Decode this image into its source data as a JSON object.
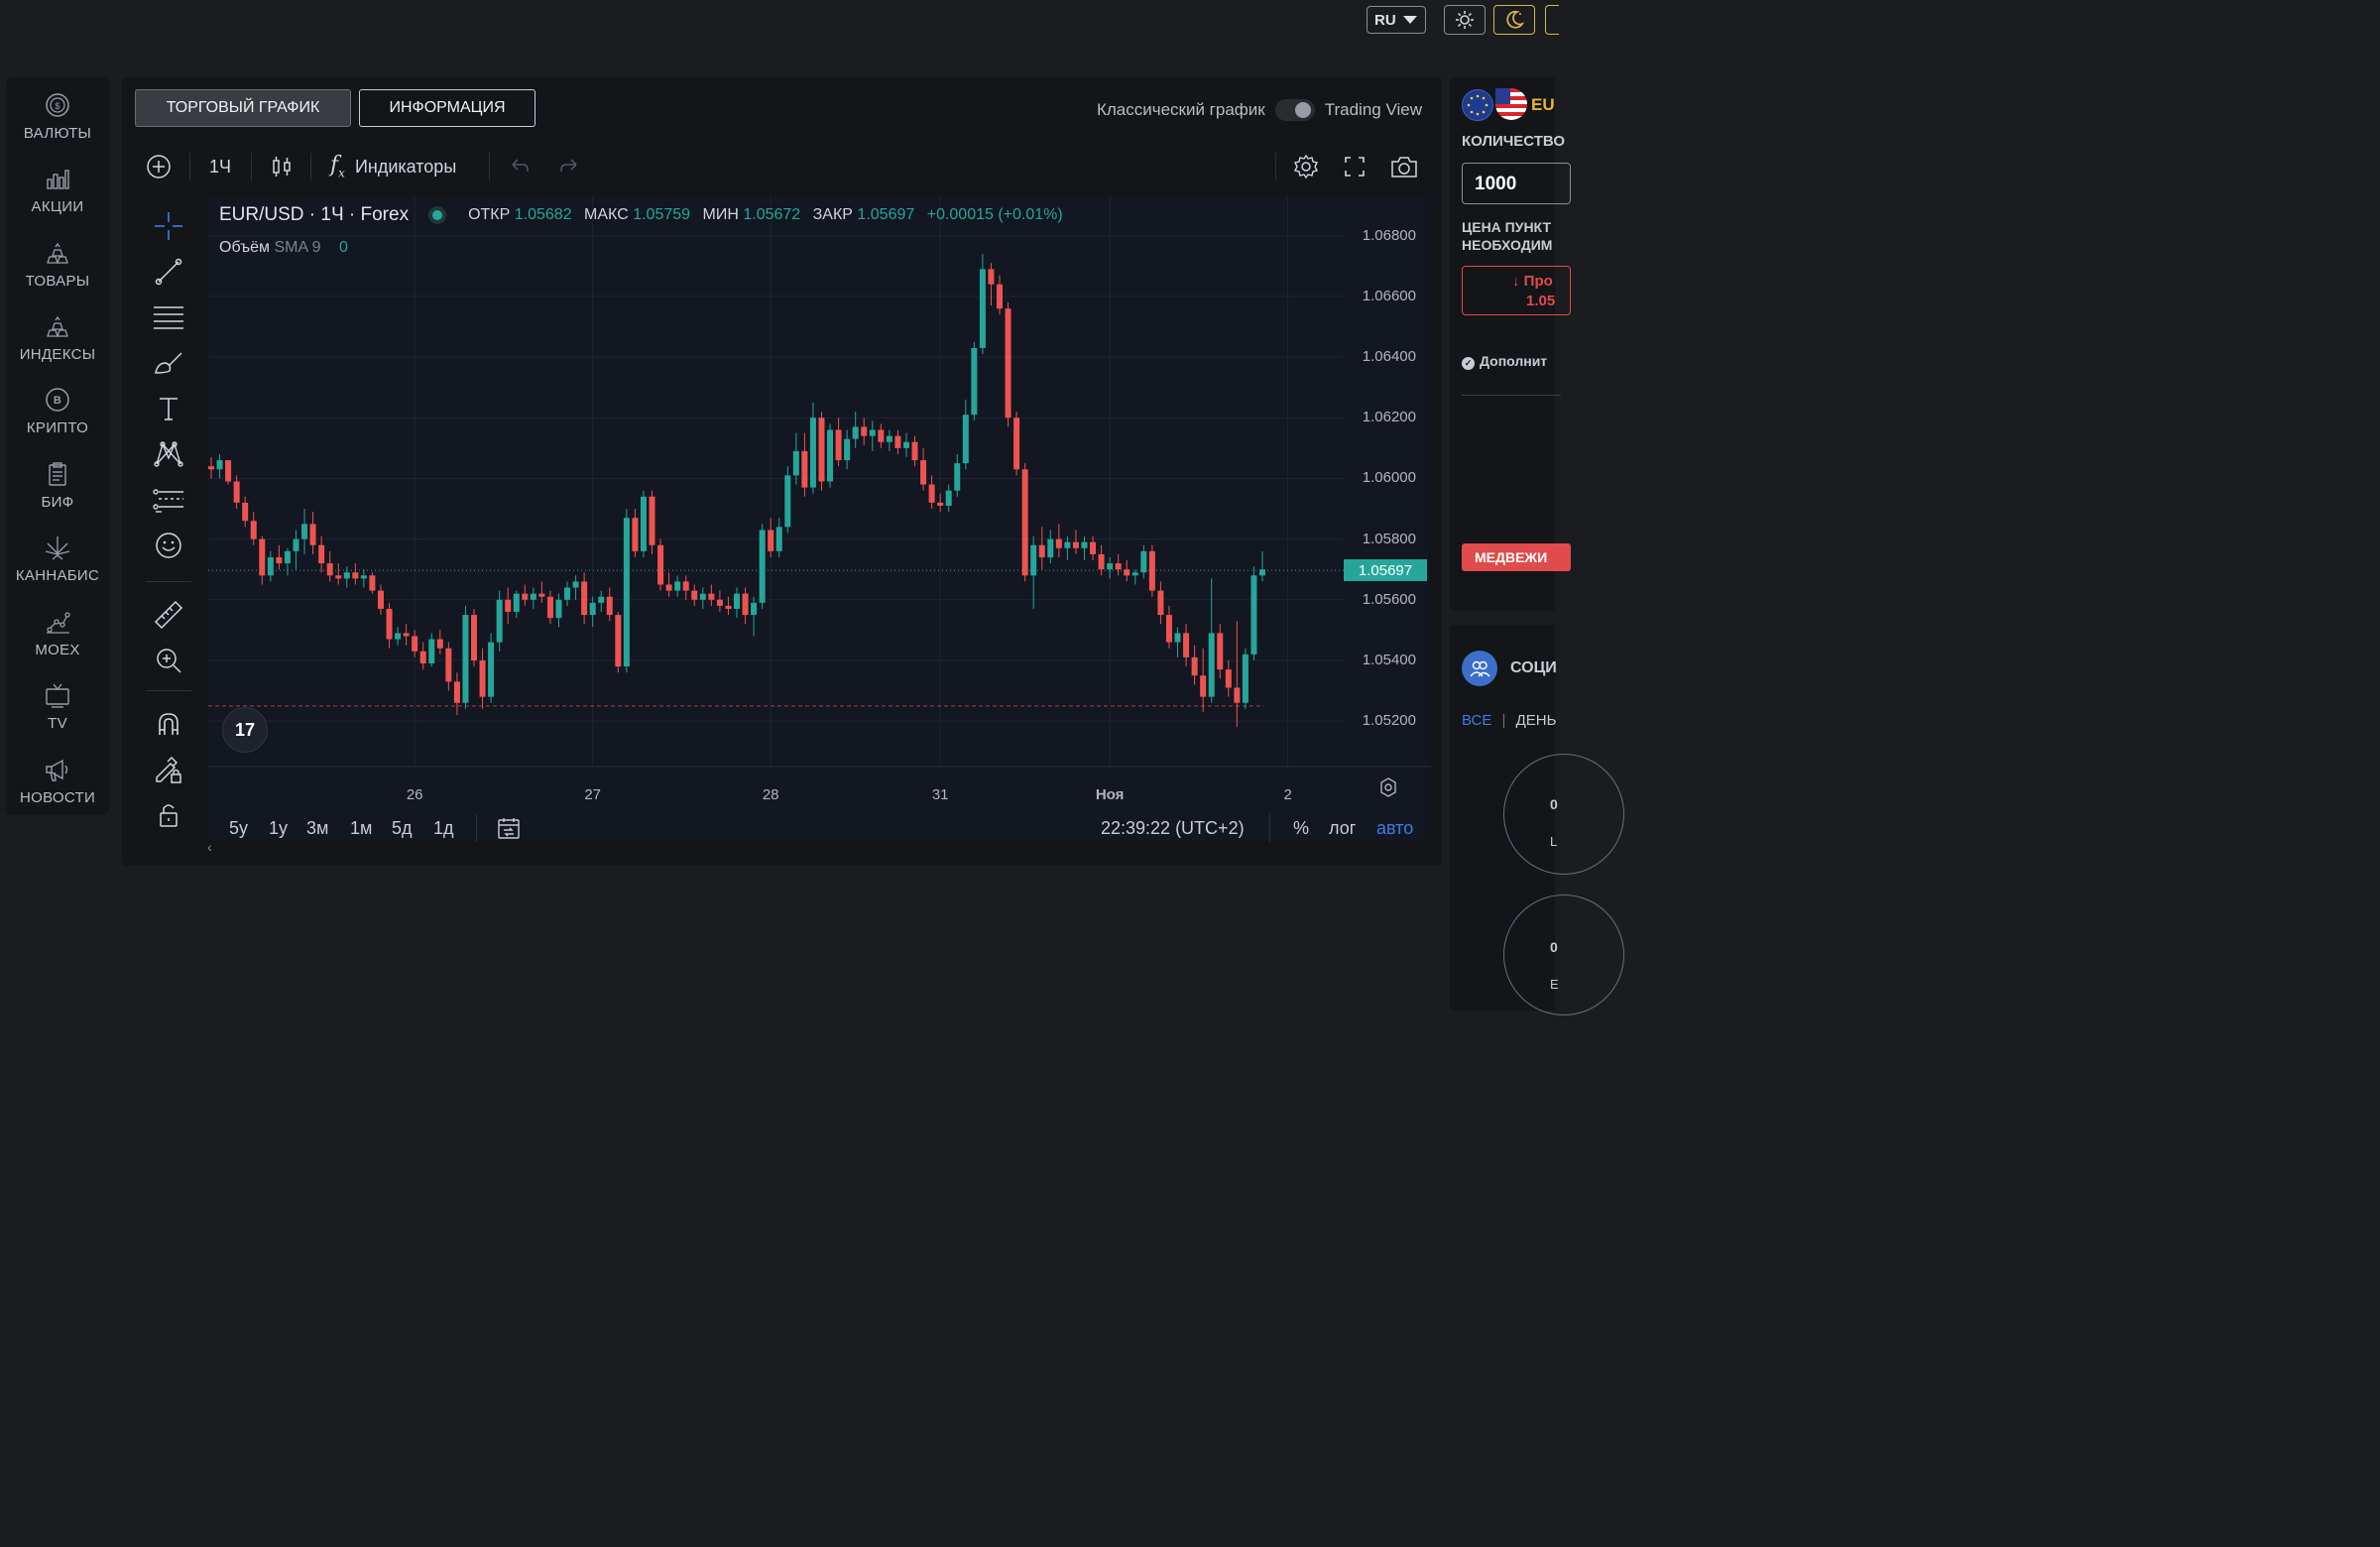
{
  "topbar": {
    "lang": "RU",
    "theme_light_icon": "sun-icon",
    "theme_dark_icon": "moon-icon"
  },
  "nav": [
    {
      "label": "ВАЛЮТЫ",
      "icon": "coin-icon"
    },
    {
      "label": "АКЦИИ",
      "icon": "bar-chart-icon"
    },
    {
      "label": "ТОВАРЫ",
      "icon": "gold-bars-icon"
    },
    {
      "label": "ИНДЕКСЫ",
      "icon": "gold-bars-icon"
    },
    {
      "label": "КРИПТО",
      "icon": "bitcoin-icon"
    },
    {
      "label": "БИФ",
      "icon": "clipboard-icon"
    },
    {
      "label": "КАННАБИС",
      "icon": "cannabis-leaf-icon"
    },
    {
      "label": "MOEX",
      "icon": "scatter-icon"
    },
    {
      "label": "TV",
      "icon": "tv-icon"
    },
    {
      "label": "НОВОСТИ",
      "icon": "megaphone-icon"
    }
  ],
  "tabs": {
    "trading_chart": "ТОРГОВЫЙ ГРАФИК",
    "info": "ИНФОРМАЦИЯ"
  },
  "view_toggle": {
    "classic": "Классический график",
    "tradingview": "Trading View"
  },
  "toolbar": {
    "interval": "1Ч",
    "indicators": "Индикаторы"
  },
  "chart_header": {
    "symbol": "EUR/USD · 1Ч · Forex",
    "open_label": "ОТКР",
    "open": "1.05682",
    "high_label": "МАКС",
    "high": "1.05759",
    "low_label": "МИН",
    "low": "1.05672",
    "close_label": "ЗАКР",
    "close": "1.05697",
    "change": "+0.00015 (+0.01%)",
    "volume_label": "Объём",
    "volume_sma": "SMA 9",
    "volume_value": "0"
  },
  "bottom": {
    "ranges": [
      "5y",
      "1y",
      "3м",
      "1м",
      "5д",
      "1д"
    ],
    "time": "22:39:22 (UTC+2)",
    "percent": "%",
    "log": "лог",
    "auto": "авто"
  },
  "right": {
    "pair": "EU",
    "qty_label": "КОЛИЧЕСТВО",
    "qty_value": "1000",
    "price_label_1": "ЦЕНА ПУНКТ",
    "price_label_2": "НЕОБХОДИМ",
    "sell_label": "Про",
    "sell_price": "1.05",
    "more": "Дополнит",
    "bear": "МЕДВЕЖИ",
    "social": "СОЦИ",
    "filter_all": "ВСЕ",
    "filter_day": "ДЕНЬ",
    "gauge1": "0",
    "gauge1_sub": "L",
    "gauge2": "0",
    "gauge2_sub": "E"
  },
  "colors": {
    "up": "#26a69a",
    "down": "#ef5350",
    "accent_blue": "#3d7ce6",
    "bear_red": "#e04b4b"
  },
  "chart_data": {
    "type": "candlestick",
    "title": "EUR/USD · 1Ч · Forex",
    "y_ticks": [
      1.068,
      1.066,
      1.064,
      1.062,
      1.06,
      1.058,
      1.056,
      1.054,
      1.052
    ],
    "y_tick_labels": [
      "1.06800",
      "1.06600",
      "1.06400",
      "1.06200",
      "1.06000",
      "1.05800",
      "1.05600",
      "1.05400",
      "1.05200"
    ],
    "ylim": [
      1.0505,
      1.0693
    ],
    "x_labels": [
      "26",
      "27",
      "28",
      "31",
      "Ноя",
      "2"
    ],
    "last_price": 1.05697,
    "last_price_label": "1.05697",
    "low_line": 1.0525,
    "candles": [
      [
        1.0604,
        1.0607,
        1.06,
        1.0603
      ],
      [
        1.0603,
        1.0608,
        1.06,
        1.0606
      ],
      [
        1.0606,
        1.0606,
        1.0598,
        1.0599
      ],
      [
        1.0599,
        1.0601,
        1.059,
        1.0592
      ],
      [
        1.0592,
        1.0594,
        1.0584,
        1.0586
      ],
      [
        1.0586,
        1.0589,
        1.0578,
        1.058
      ],
      [
        1.058,
        1.0581,
        1.0565,
        1.0568
      ],
      [
        1.0568,
        1.0576,
        1.0566,
        1.0574
      ],
      [
        1.0574,
        1.0578,
        1.057,
        1.0572
      ],
      [
        1.0572,
        1.0577,
        1.0568,
        1.0576
      ],
      [
        1.0576,
        1.0583,
        1.057,
        1.058
      ],
      [
        1.058,
        1.059,
        1.0575,
        1.0585
      ],
      [
        1.0585,
        1.0589,
        1.0575,
        1.0578
      ],
      [
        1.0578,
        1.0581,
        1.0569,
        1.0572
      ],
      [
        1.0572,
        1.0576,
        1.0566,
        1.0568
      ],
      [
        1.0568,
        1.0572,
        1.0565,
        1.0567
      ],
      [
        1.0567,
        1.0571,
        1.0564,
        1.0569
      ],
      [
        1.0569,
        1.0572,
        1.0565,
        1.0567
      ],
      [
        1.0567,
        1.057,
        1.0564,
        1.0568
      ],
      [
        1.0568,
        1.0569,
        1.0562,
        1.0563
      ],
      [
        1.0563,
        1.0565,
        1.0555,
        1.0557
      ],
      [
        1.0557,
        1.0559,
        1.0544,
        1.0547
      ],
      [
        1.0547,
        1.0551,
        1.0545,
        1.0549
      ],
      [
        1.0549,
        1.0552,
        1.0545,
        1.0548
      ],
      [
        1.0548,
        1.055,
        1.0541,
        1.0543
      ],
      [
        1.0543,
        1.0546,
        1.0537,
        1.0539
      ],
      [
        1.0539,
        1.0549,
        1.0538,
        1.0547
      ],
      [
        1.0547,
        1.055,
        1.0542,
        1.0544
      ],
      [
        1.0544,
        1.0546,
        1.053,
        1.0533
      ],
      [
        1.0533,
        1.0536,
        1.0522,
        1.0526
      ],
      [
        1.0526,
        1.0558,
        1.0524,
        1.0555
      ],
      [
        1.0555,
        1.0557,
        1.0538,
        1.054
      ],
      [
        1.054,
        1.0544,
        1.0524,
        1.0528
      ],
      [
        1.0528,
        1.0549,
        1.0526,
        1.0546
      ],
      [
        1.0546,
        1.0563,
        1.0543,
        1.056
      ],
      [
        1.056,
        1.0564,
        1.0552,
        1.0556
      ],
      [
        1.0556,
        1.0563,
        1.0554,
        1.0562
      ],
      [
        1.0562,
        1.0565,
        1.0558,
        1.056
      ],
      [
        1.056,
        1.0564,
        1.0557,
        1.0562
      ],
      [
        1.0562,
        1.0566,
        1.0559,
        1.0561
      ],
      [
        1.0561,
        1.0563,
        1.0552,
        1.0554
      ],
      [
        1.0554,
        1.0562,
        1.0551,
        1.056
      ],
      [
        1.056,
        1.0566,
        1.0558,
        1.0564
      ],
      [
        1.0564,
        1.0568,
        1.056,
        1.0566
      ],
      [
        1.0566,
        1.0569,
        1.0552,
        1.0555
      ],
      [
        1.0555,
        1.0561,
        1.0551,
        1.0559
      ],
      [
        1.0559,
        1.0563,
        1.0556,
        1.0561
      ],
      [
        1.0561,
        1.0564,
        1.0553,
        1.0555
      ],
      [
        1.0555,
        1.0556,
        1.0536,
        1.0538
      ],
      [
        1.0538,
        1.059,
        1.0536,
        1.0587
      ],
      [
        1.0587,
        1.059,
        1.0574,
        1.0576
      ],
      [
        1.0576,
        1.0596,
        1.0574,
        1.0594
      ],
      [
        1.0594,
        1.0596,
        1.0575,
        1.0578
      ],
      [
        1.0578,
        1.058,
        1.0563,
        1.0565
      ],
      [
        1.0565,
        1.0569,
        1.0561,
        1.0563
      ],
      [
        1.0563,
        1.0568,
        1.0561,
        1.0566
      ],
      [
        1.0566,
        1.0568,
        1.056,
        1.0563
      ],
      [
        1.0563,
        1.0565,
        1.0558,
        1.056
      ],
      [
        1.056,
        1.0564,
        1.0557,
        1.0562
      ],
      [
        1.0562,
        1.0565,
        1.0558,
        1.056
      ],
      [
        1.056,
        1.0563,
        1.0556,
        1.0558
      ],
      [
        1.0558,
        1.0561,
        1.0555,
        1.0557
      ],
      [
        1.0557,
        1.0564,
        1.0554,
        1.0562
      ],
      [
        1.0562,
        1.0564,
        1.0552,
        1.0555
      ],
      [
        1.0555,
        1.0561,
        1.0548,
        1.0559
      ],
      [
        1.0559,
        1.0585,
        1.0557,
        1.0583
      ],
      [
        1.0583,
        1.0587,
        1.0574,
        1.0576
      ],
      [
        1.0576,
        1.0587,
        1.0574,
        1.0584
      ],
      [
        1.0584,
        1.0604,
        1.0582,
        1.0601
      ],
      [
        1.0601,
        1.0615,
        1.0598,
        1.0609
      ],
      [
        1.0609,
        1.0615,
        1.0594,
        1.0597
      ],
      [
        1.0597,
        1.0625,
        1.0595,
        1.062
      ],
      [
        1.062,
        1.0622,
        1.0596,
        1.0599
      ],
      [
        1.0599,
        1.0618,
        1.0597,
        1.0616
      ],
      [
        1.0616,
        1.062,
        1.0604,
        1.0606
      ],
      [
        1.0606,
        1.0616,
        1.0603,
        1.0613
      ],
      [
        1.0613,
        1.0622,
        1.061,
        1.0617
      ],
      [
        1.0617,
        1.062,
        1.0611,
        1.0614
      ],
      [
        1.0614,
        1.0619,
        1.0609,
        1.0616
      ],
      [
        1.0616,
        1.0618,
        1.061,
        1.0612
      ],
      [
        1.0612,
        1.0616,
        1.0609,
        1.0614
      ],
      [
        1.0614,
        1.0616,
        1.0608,
        1.061
      ],
      [
        1.061,
        1.0615,
        1.0607,
        1.0612
      ],
      [
        1.0612,
        1.0614,
        1.0604,
        1.0606
      ],
      [
        1.0606,
        1.061,
        1.0596,
        1.0598
      ],
      [
        1.0598,
        1.0601,
        1.059,
        1.0592
      ],
      [
        1.0592,
        1.0595,
        1.0589,
        1.0591
      ],
      [
        1.0591,
        1.0598,
        1.0589,
        1.0596
      ],
      [
        1.0596,
        1.0608,
        1.0594,
        1.0605
      ],
      [
        1.0605,
        1.0626,
        1.0603,
        1.0621
      ],
      [
        1.0621,
        1.0645,
        1.0619,
        1.0643
      ],
      [
        1.0643,
        1.0674,
        1.0641,
        1.0669
      ],
      [
        1.0669,
        1.0671,
        1.0657,
        1.0664
      ],
      [
        1.0664,
        1.0667,
        1.0654,
        1.0656
      ],
      [
        1.0656,
        1.0658,
        1.0617,
        1.062
      ],
      [
        1.062,
        1.0622,
        1.0601,
        1.0603
      ],
      [
        1.0603,
        1.0605,
        1.0566,
        1.0568
      ],
      [
        1.0568,
        1.0581,
        1.0557,
        1.0578
      ],
      [
        1.0578,
        1.0584,
        1.057,
        1.0574
      ],
      [
        1.0574,
        1.0583,
        1.0572,
        1.058
      ],
      [
        1.058,
        1.0585,
        1.0574,
        1.0577
      ],
      [
        1.0577,
        1.0581,
        1.0573,
        1.0579
      ],
      [
        1.0579,
        1.0583,
        1.0575,
        1.0577
      ],
      [
        1.0577,
        1.0581,
        1.0573,
        1.0579
      ],
      [
        1.0579,
        1.0581,
        1.0573,
        1.0575
      ],
      [
        1.0575,
        1.0578,
        1.0568,
        1.057
      ],
      [
        1.057,
        1.0574,
        1.0567,
        1.0572
      ],
      [
        1.0572,
        1.0575,
        1.0568,
        1.057
      ],
      [
        1.057,
        1.0573,
        1.0566,
        1.0568
      ],
      [
        1.0568,
        1.057,
        1.0565,
        1.0569
      ],
      [
        1.0569,
        1.0578,
        1.0567,
        1.0576
      ],
      [
        1.0576,
        1.0578,
        1.0561,
        1.0563
      ],
      [
        1.0563,
        1.0566,
        1.0552,
        1.0555
      ],
      [
        1.0555,
        1.0558,
        1.0544,
        1.0546
      ],
      [
        1.0546,
        1.0551,
        1.0541,
        1.0549
      ],
      [
        1.0549,
        1.0552,
        1.0538,
        1.0541
      ],
      [
        1.0541,
        1.0545,
        1.0532,
        1.0535
      ],
      [
        1.0535,
        1.0544,
        1.0523,
        1.0528
      ],
      [
        1.0528,
        1.0567,
        1.0526,
        1.0549
      ],
      [
        1.0549,
        1.0552,
        1.0534,
        1.0537
      ],
      [
        1.0537,
        1.054,
        1.0528,
        1.0531
      ],
      [
        1.0531,
        1.0553,
        1.0518,
        1.0526
      ],
      [
        1.0526,
        1.0544,
        1.0524,
        1.0542
      ],
      [
        1.0542,
        1.0571,
        1.054,
        1.0568
      ],
      [
        1.0568,
        1.0576,
        1.0566,
        1.057
      ]
    ]
  }
}
